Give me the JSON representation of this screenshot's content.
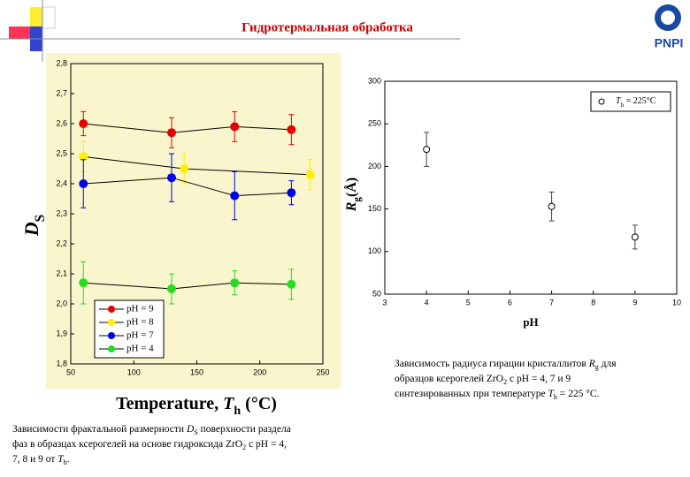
{
  "slide": {
    "title": "Гидротермальная обработка",
    "logo": "PNPI",
    "captions": [
      [
        {
          "t": "Зависимости фрактальной размерности "
        },
        {
          "t": "D",
          "i": true
        },
        {
          "t": "S",
          "sub": true
        },
        {
          "t": " поверхности раздела"
        },
        {
          "t": "фаз в образцах ксерогелей на основе гидроксида ZrO",
          "br": true
        },
        {
          "t": "2",
          "sub": true
        },
        {
          "t": " с pH = 4,"
        },
        {
          "t": "7, 8 и 9 от ",
          "br": true
        },
        {
          "t": "T",
          "i": true
        },
        {
          "t": "h",
          "sub": true
        },
        {
          "t": "."
        }
      ],
      [
        {
          "t": "Зависимость  радиуса гирации кристаллитов "
        },
        {
          "t": "R",
          "i": true
        },
        {
          "t": "g",
          "sub": true
        },
        {
          "t": " для"
        },
        {
          "t": "образцов ксерогелей ZrO",
          "br": true
        },
        {
          "t": "2",
          "sub": true
        },
        {
          "t": " с pH = 4, 7 и 9"
        },
        {
          "t": "синтезированных при температуре ",
          "br": true
        },
        {
          "t": "T",
          "i": true
        },
        {
          "t": "h",
          "sub": true
        },
        {
          "t": " = 225 °C."
        }
      ]
    ]
  },
  "chart_data": [
    {
      "type": "line",
      "xlabel": [
        {
          "t": "Temperature, "
        },
        {
          "t": "T",
          "i": true
        },
        {
          "t": "h",
          "sub": true
        },
        {
          "t": " (°C)"
        }
      ],
      "ylabel": [
        {
          "t": "D",
          "i": true
        },
        {
          "t": "S",
          "sub": true
        }
      ],
      "xlim": [
        50,
        250
      ],
      "xticks": [
        50,
        100,
        150,
        200,
        250
      ],
      "ylim": [
        1.8,
        2.8
      ],
      "yticks": [
        {
          "value": 1.8,
          "label": "1,8"
        },
        {
          "value": 1.9,
          "label": "1,9"
        },
        {
          "value": 2.0,
          "label": "2,0"
        },
        {
          "value": 2.1,
          "label": "2,1"
        },
        {
          "value": 2.2,
          "label": "2,2"
        },
        {
          "value": 2.3,
          "label": "2,3"
        },
        {
          "value": 2.4,
          "label": "2,4"
        },
        {
          "value": 2.5,
          "label": "2,5"
        },
        {
          "value": 2.6,
          "label": "2,6"
        },
        {
          "value": 2.7,
          "label": "2,7"
        },
        {
          "value": 2.8,
          "label": "2,8"
        }
      ],
      "series": [
        {
          "name": "pH = 9",
          "color": "#e60000",
          "x": [
            60,
            130,
            180,
            225
          ],
          "values": [
            2.6,
            2.57,
            2.59,
            2.58
          ],
          "errors": [
            0.04,
            0.05,
            0.05,
            0.05
          ]
        },
        {
          "name": "pH = 8",
          "color": "#ffee00",
          "x": [
            60,
            140,
            240
          ],
          "values": [
            2.49,
            2.45,
            2.43
          ],
          "errors": [
            0.05,
            0.05,
            0.05
          ]
        },
        {
          "name": "pH = 7",
          "color": "#0000e6",
          "x": [
            60,
            130,
            180,
            225
          ],
          "values": [
            2.4,
            2.42,
            2.36,
            2.37
          ],
          "errors": [
            0.08,
            0.08,
            0.08,
            0.04
          ]
        },
        {
          "name": "pH = 4",
          "color": "#22dd22",
          "x": [
            60,
            130,
            180,
            225
          ],
          "values": [
            2.07,
            2.05,
            2.07,
            2.065
          ],
          "errors": [
            0.07,
            0.05,
            0.04,
            0.05
          ]
        }
      ]
    },
    {
      "type": "scatter",
      "xlabel": [
        {
          "t": "pH"
        }
      ],
      "ylabel": [
        {
          "t": "R",
          "i": true
        },
        {
          "t": "g",
          "sub": true
        },
        {
          "t": "(Å)"
        }
      ],
      "legend": [
        {
          "t": "T",
          "i": true
        },
        {
          "t": "h",
          "sub": true
        },
        {
          "t": " = 225°C"
        }
      ],
      "xlim": [
        3,
        10
      ],
      "xticks": [
        3,
        4,
        5,
        6,
        7,
        8,
        9,
        10
      ],
      "ylim": [
        50,
        300
      ],
      "yticks": [
        50,
        100,
        150,
        200,
        250,
        300
      ],
      "open": true,
      "series": [
        {
          "color": "#000000",
          "x": [
            4,
            7,
            9
          ],
          "values": [
            220,
            153,
            117
          ],
          "errors": [
            20,
            17,
            14
          ]
        }
      ]
    }
  ]
}
